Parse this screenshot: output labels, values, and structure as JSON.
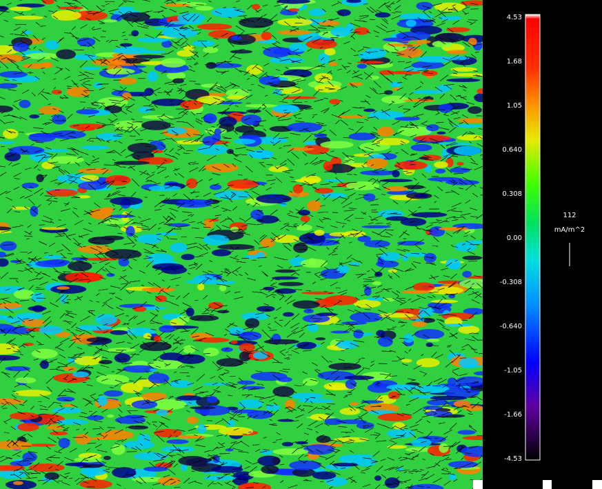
{
  "colorbar": {
    "ticks": [
      "4.53",
      "1.68",
      "1.05",
      "0.640",
      "0.308",
      "0.00",
      "-0.308",
      "-0.640",
      "-1.05",
      "-1.66",
      "-4.53"
    ],
    "vector_scale": "112",
    "units": "mA/m^2"
  }
}
